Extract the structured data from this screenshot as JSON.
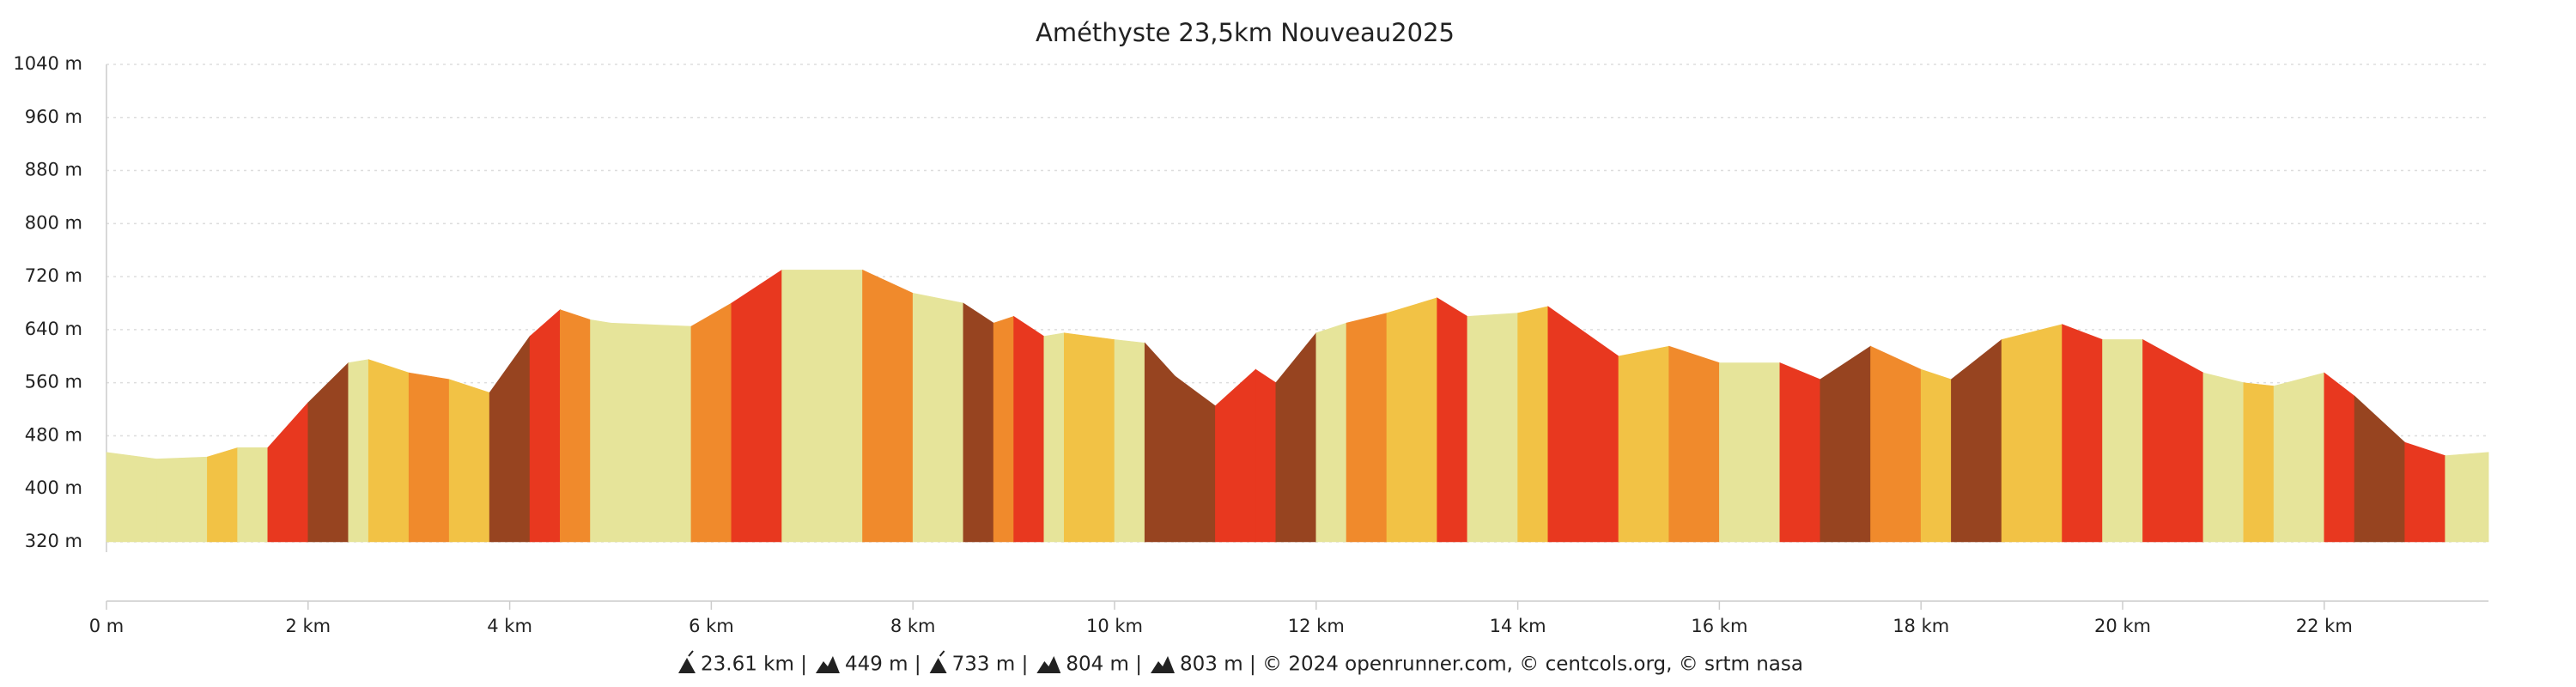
{
  "chart_data": {
    "type": "area",
    "title": "Améthyste 23,5km Nouveau2025",
    "x": [
      0,
      0.5,
      1.0,
      1.3,
      1.6,
      2.0,
      2.4,
      2.6,
      3.0,
      3.4,
      3.8,
      4.2,
      4.5,
      4.8,
      5.0,
      5.8,
      6.2,
      6.7,
      7.5,
      8.0,
      8.5,
      8.8,
      9.0,
      9.3,
      9.5,
      10.0,
      10.3,
      10.6,
      11.0,
      11.4,
      11.6,
      12.0,
      12.3,
      12.7,
      13.2,
      13.5,
      14.0,
      14.3,
      15.0,
      15.5,
      16.0,
      16.6,
      17.0,
      17.5,
      18.0,
      18.3,
      18.8,
      19.4,
      19.8,
      20.2,
      20.8,
      21.2,
      21.5,
      22.0,
      22.3,
      22.8,
      23.2,
      23.63
    ],
    "values": [
      455,
      445,
      448,
      462,
      462,
      530,
      590,
      595,
      575,
      565,
      545,
      630,
      670,
      655,
      650,
      645,
      680,
      730,
      730,
      695,
      680,
      650,
      660,
      630,
      635,
      625,
      620,
      570,
      525,
      580,
      560,
      635,
      650,
      665,
      688,
      660,
      665,
      675,
      600,
      615,
      590,
      590,
      565,
      615,
      580,
      565,
      625,
      648,
      625,
      625,
      575,
      560,
      555,
      575,
      540,
      470,
      450,
      455
    ],
    "segment_colors": [
      "#e6e49a",
      "#e6e49a",
      "#f2c245",
      "#e6e49a",
      "#e8381f",
      "#974420",
      "#e6e49a",
      "#f2c245",
      "#f08a2c",
      "#f2c245",
      "#974420",
      "#e8381f",
      "#f08a2c",
      "#e6e49a",
      "#e6e49a",
      "#f08a2c",
      "#e8381f",
      "#e6e49a",
      "#f08a2c",
      "#e6e49a",
      "#974420",
      "#f08a2c",
      "#e8381f",
      "#e6e49a",
      "#f2c245",
      "#e6e49a",
      "#974420",
      "#974420",
      "#e8381f",
      "#e8381f",
      "#974420",
      "#e6e49a",
      "#f08a2c",
      "#f2c245",
      "#e8381f",
      "#e6e49a",
      "#f2c245",
      "#e8381f",
      "#f2c245",
      "#f08a2c",
      "#e6e49a",
      "#e8381f",
      "#974420",
      "#f08a2c",
      "#f2c245",
      "#974420",
      "#f2c245",
      "#e8381f",
      "#e6e49a",
      "#e8381f",
      "#e6e49a",
      "#f2c245",
      "#e6e49a",
      "#e8381f",
      "#974420",
      "#e8381f",
      "#e6e49a"
    ],
    "xlim": [
      0,
      23.63
    ],
    "ylim": [
      320,
      1040
    ],
    "yticks": [
      {
        "value": 320,
        "label": "320 m"
      },
      {
        "value": 400,
        "label": "400 m"
      },
      {
        "value": 480,
        "label": "480 m"
      },
      {
        "value": 560,
        "label": "560 m"
      },
      {
        "value": 640,
        "label": "640 m"
      },
      {
        "value": 720,
        "label": "720 m"
      },
      {
        "value": 800,
        "label": "800 m"
      },
      {
        "value": 880,
        "label": "880 m"
      },
      {
        "value": 960,
        "label": "960 m"
      },
      {
        "value": 1040,
        "label": "1040 m"
      }
    ],
    "xticks": [
      {
        "value": 0,
        "label": "0 m"
      },
      {
        "value": 2,
        "label": "2 km"
      },
      {
        "value": 4,
        "label": "4 km"
      },
      {
        "value": 6,
        "label": "6 km"
      },
      {
        "value": 8,
        "label": "8 km"
      },
      {
        "value": 10,
        "label": "10 km"
      },
      {
        "value": 12,
        "label": "12 km"
      },
      {
        "value": 14,
        "label": "14 km"
      },
      {
        "value": 16,
        "label": "16 km"
      },
      {
        "value": 18,
        "label": "18 km"
      },
      {
        "value": 20,
        "label": "20 km"
      },
      {
        "value": 22,
        "label": "22 km"
      }
    ],
    "grid": true,
    "footer": [
      "23.61 km |",
      "449 m |",
      "733 m |",
      "804 m |",
      "803 m | © 2024 openrunner.com, © centcols.org, © srtm nasa"
    ]
  }
}
